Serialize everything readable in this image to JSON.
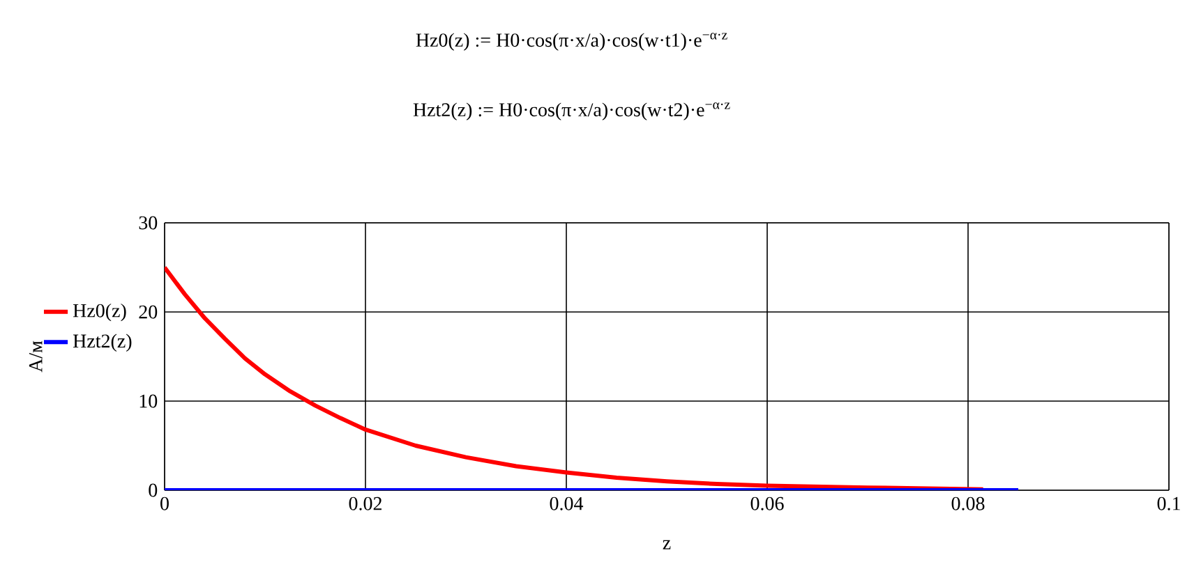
{
  "chart_data": {
    "type": "line",
    "title": "Hz0(z) := H0·cos(π·x/a)·cos(w·t1)·e$^{−α·z}$",
    "subtitle": "Hzt2(z) := H0·cos(π·x/a)·cos(w·t2)·e$^{−α·z}$",
    "xlabel": "z",
    "ylabel": "A/м",
    "series": [
      {
        "name": "Hz0(z)",
        "color": "#ff0000",
        "x": [
          0,
          0.002,
          0.004,
          0.006,
          0.008,
          0.01,
          0.0125,
          0.015,
          0.0175,
          0.02,
          0.025,
          0.03,
          0.035,
          0.04,
          0.045,
          0.05,
          0.055,
          0.06,
          0.07,
          0.0815
        ],
        "values": [
          25,
          22,
          19.3,
          17,
          14.8,
          13,
          11.1,
          9.5,
          8.1,
          6.8,
          5,
          3.7,
          2.7,
          2.0,
          1.4,
          1.0,
          0.7,
          0.5,
          0.3,
          0.1
        ]
      },
      {
        "name": "Hzt2(z)",
        "color": "#0000ff",
        "x": [
          0,
          0.085
        ],
        "values": [
          0,
          0
        ]
      }
    ],
    "xlim": [
      0,
      0.1
    ],
    "xticks": [
      0,
      0.02,
      0.04,
      0.06,
      0.08,
      0.1
    ],
    "ylim": [
      0,
      30
    ],
    "yticks": [
      0,
      10,
      20,
      30
    ],
    "grid": true,
    "legend": "left",
    "marker": "none",
    "line_style": "solid"
  }
}
